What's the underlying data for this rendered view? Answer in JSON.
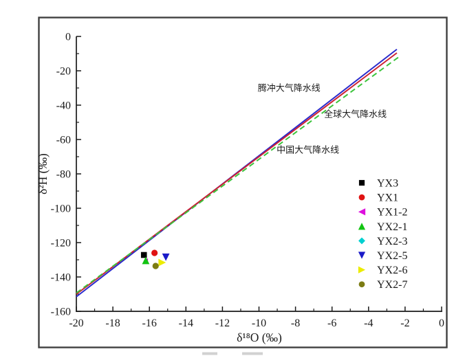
{
  "figure": {
    "background": "#ffffff",
    "border_color": "#404040"
  },
  "chart_data": {
    "type": "scatter",
    "title": "",
    "xlabel": "δ¹⁸O (‰)",
    "ylabel": "δ²H (‰)",
    "xlim": [
      -20,
      0
    ],
    "ylim": [
      -160,
      0
    ],
    "grid": false,
    "legend_position": "right-middle",
    "x_ticks": [
      -20,
      -18,
      -16,
      -14,
      -12,
      -10,
      -8,
      -6,
      -4,
      -2,
      0
    ],
    "y_ticks": [
      0,
      -20,
      -40,
      -60,
      -80,
      -100,
      -120,
      -140,
      -160
    ],
    "x_minor_ticks": [
      -19,
      -17,
      -15,
      -13,
      -11,
      -9,
      -7,
      -5,
      -3,
      -1
    ],
    "y_minor_ticks": [
      -10,
      -30,
      -50,
      -70,
      -90,
      -110,
      -130,
      -150
    ],
    "lines": [
      {
        "name": "腾冲大气降水线",
        "color": "#2a2acc",
        "style": "solid",
        "x1": -20,
        "y1": -151.5,
        "x2": -2.45,
        "y2": -7.5,
        "label_x": -8.35,
        "label_y": -30,
        "label_color": "#3a3ac0"
      },
      {
        "name": "全球大气降水线",
        "color": "#cc2233",
        "style": "solid",
        "x1": -20,
        "y1": -150.0,
        "x2": -2.45,
        "y2": -9.6,
        "label_x": -4.72,
        "label_y": -45.2,
        "label_color": "#c22a3a"
      },
      {
        "name": "中国大气降水线",
        "color": "#3cc43c",
        "style": "dashed",
        "x1": -20,
        "y1": -149.3,
        "x2": -2.35,
        "y2": -12.0,
        "label_x": -7.32,
        "label_y": -66,
        "label_color": "#3bbc3b"
      }
    ],
    "series": [
      {
        "name": "YX3",
        "marker": "square",
        "color": "#000000",
        "overlapped": false,
        "points": [
          [
            -16.3,
            -127.2
          ]
        ]
      },
      {
        "name": "YX1",
        "marker": "circle",
        "color": "#e01212",
        "overlapped": false,
        "points": [
          [
            -15.72,
            -126.0
          ]
        ]
      },
      {
        "name": "YX1-2",
        "marker": "triangle-left",
        "color": "#dd10dd",
        "overlapped": true,
        "points": [
          [
            -16.2,
            -130.4
          ]
        ]
      },
      {
        "name": "YX2-1",
        "marker": "triangle-up",
        "color": "#12c412",
        "overlapped": false,
        "points": [
          [
            -16.2,
            -130.4
          ]
        ]
      },
      {
        "name": "YX2-3",
        "marker": "diamond",
        "color": "#00d0d0",
        "overlapped": true,
        "points": [
          [
            -15.1,
            -128.5
          ]
        ]
      },
      {
        "name": "YX2-5",
        "marker": "triangle-down",
        "color": "#1a1ac8",
        "overlapped": false,
        "points": [
          [
            -15.1,
            -128.5
          ]
        ]
      },
      {
        "name": "YX2-6",
        "marker": "triangle-right",
        "color": "#ecec00",
        "overlapped": false,
        "points": [
          [
            -15.3,
            -131.6
          ]
        ]
      },
      {
        "name": "YX2-7",
        "marker": "circle",
        "color": "#7c7c14",
        "overlapped": false,
        "points": [
          [
            -15.66,
            -133.6
          ]
        ]
      }
    ]
  }
}
